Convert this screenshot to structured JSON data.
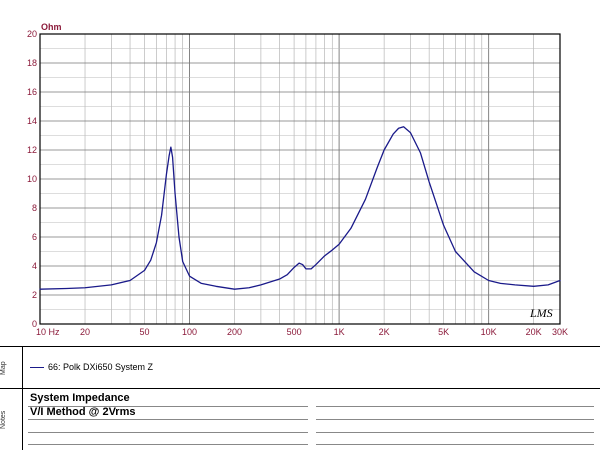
{
  "chart_data": {
    "type": "line",
    "title": "",
    "xlabel": "",
    "ylabel": "Ohm",
    "xscale": "log",
    "xlim": [
      10,
      30000
    ],
    "ylim": [
      0,
      20
    ],
    "grid": true,
    "x_tick_values": [
      10,
      20,
      50,
      100,
      200,
      500,
      1000,
      2000,
      5000,
      10000,
      20000,
      30000
    ],
    "x_tick_labels": [
      "10 Hz",
      "20",
      "50",
      "100",
      "200",
      "500",
      "1K",
      "2K",
      "5K",
      "10K",
      "20K",
      "30K"
    ],
    "y_tick_values": [
      0,
      2,
      4,
      6,
      8,
      10,
      12,
      14,
      16,
      18,
      20
    ],
    "y_tick_labels": [
      "0",
      "2",
      "4",
      "6",
      "8",
      "10",
      "12",
      "14",
      "16",
      "18",
      "20"
    ],
    "series": [
      {
        "name": "66: Polk DXi650 System Z",
        "color": "#1a1a8a",
        "x": [
          10,
          15,
          20,
          30,
          40,
          50,
          55,
          60,
          65,
          70,
          73,
          75,
          77,
          80,
          85,
          90,
          100,
          120,
          150,
          200,
          250,
          300,
          400,
          450,
          500,
          540,
          570,
          600,
          650,
          700,
          800,
          900,
          1000,
          1200,
          1500,
          1800,
          2000,
          2300,
          2500,
          2700,
          3000,
          3500,
          4000,
          5000,
          6000,
          8000,
          10000,
          12000,
          15000,
          20000,
          25000,
          30000
        ],
        "values": [
          2.4,
          2.45,
          2.5,
          2.7,
          3.0,
          3.7,
          4.4,
          5.6,
          7.5,
          10.3,
          11.6,
          12.2,
          11.5,
          9.0,
          6.0,
          4.3,
          3.3,
          2.8,
          2.6,
          2.4,
          2.5,
          2.7,
          3.1,
          3.4,
          3.9,
          4.2,
          4.1,
          3.8,
          3.8,
          4.1,
          4.7,
          5.1,
          5.5,
          6.6,
          8.6,
          10.8,
          12.0,
          13.1,
          13.5,
          13.6,
          13.2,
          11.8,
          9.8,
          6.8,
          5.0,
          3.6,
          3.0,
          2.8,
          2.7,
          2.6,
          2.7,
          3.0
        ]
      }
    ]
  },
  "watermark": "LMS",
  "map_label": "Map",
  "notes_label": "Notes",
  "legend": {
    "entry": "66: Polk DXi650 System Z"
  },
  "notes": {
    "line1": "System Impedance",
    "line2": "V/I Method @ 2Vrms"
  }
}
